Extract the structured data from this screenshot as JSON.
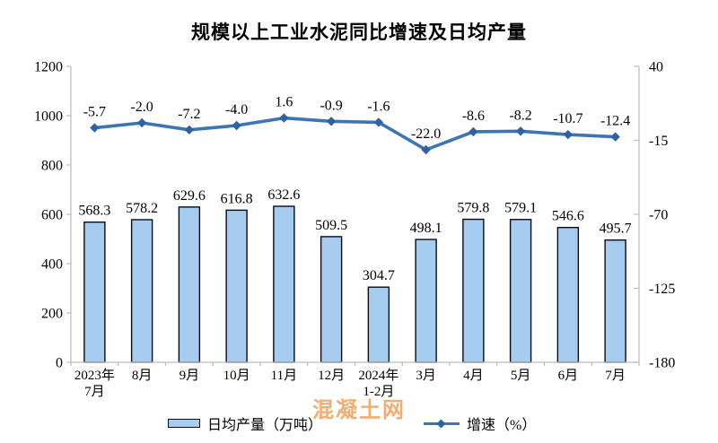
{
  "title": "规模以上工业水泥同比增速及日均产量",
  "watermark": "混凝土网",
  "legend": {
    "bars": "日均产量（万吨）",
    "line": "增速（%）"
  },
  "colors": {
    "bar_fill": "#a6ccf0",
    "bar_border": "#0a0a14",
    "line": "#3c74b5",
    "marker": "#2f62a5",
    "axis": "#bcbcbc",
    "watermark": "#ed9d55",
    "text": "#000000"
  },
  "chart_data": {
    "type": "bar+line",
    "title": "规模以上工业水泥同比增速及日均产量",
    "categories": [
      [
        "2023年",
        "7月"
      ],
      [
        "8月"
      ],
      [
        "9月"
      ],
      [
        "10月"
      ],
      [
        "11月"
      ],
      [
        "12月"
      ],
      [
        "2024年",
        "1-2月"
      ],
      [
        "3月"
      ],
      [
        "4月"
      ],
      [
        "5月"
      ],
      [
        "6月"
      ],
      [
        "7月"
      ]
    ],
    "series": [
      {
        "name": "日均产量（万吨）",
        "type": "bar",
        "axis": "left",
        "values": [
          568.3,
          578.2,
          629.6,
          616.8,
          632.6,
          509.5,
          304.7,
          498.1,
          579.8,
          579.1,
          546.6,
          495.7
        ]
      },
      {
        "name": "增速（%）",
        "type": "line",
        "axis": "right",
        "values": [
          -5.7,
          -2.0,
          -7.2,
          -4.0,
          1.6,
          -0.9,
          -1.6,
          -22.0,
          -8.6,
          -8.2,
          -10.7,
          -12.4
        ]
      }
    ],
    "left_axis": {
      "min": 0,
      "max": 1200,
      "ticks": [
        1200,
        1000,
        800,
        600,
        400,
        200,
        0
      ]
    },
    "right_axis": {
      "min": -180,
      "max": 40,
      "ticks": [
        40,
        -15,
        -70,
        -125,
        -180
      ]
    },
    "grid": false,
    "legend_position": "bottom"
  }
}
